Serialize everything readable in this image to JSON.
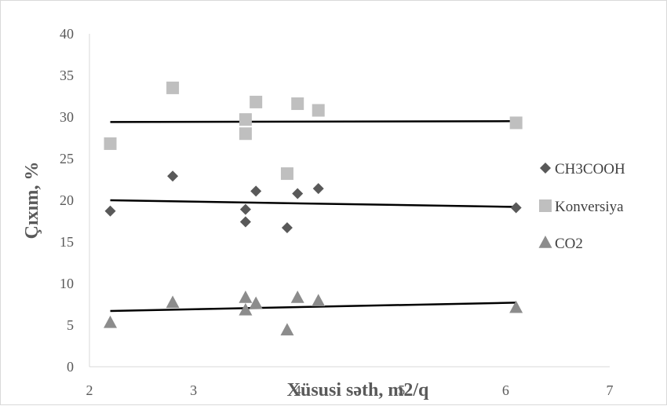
{
  "chart_data": {
    "type": "scatter",
    "title": "",
    "xlabel": "Xüsusi səth, m2/q",
    "ylabel": "Çıxım, %",
    "xlim": [
      2,
      7
    ],
    "ylim": [
      0,
      40
    ],
    "x_ticks": [
      "2",
      "3",
      "4",
      "5",
      "6",
      "7"
    ],
    "y_ticks": [
      "0",
      "5",
      "10",
      "15",
      "20",
      "25",
      "30",
      "35",
      "40"
    ],
    "grid": false,
    "legend_position": "right",
    "series": [
      {
        "name": "CH3COOH",
        "marker": "diamond",
        "color": "#595959",
        "points": [
          [
            2.2,
            18.7
          ],
          [
            2.8,
            22.9
          ],
          [
            3.5,
            18.9
          ],
          [
            3.5,
            17.4
          ],
          [
            3.6,
            21.1
          ],
          [
            3.9,
            16.7
          ],
          [
            4.0,
            20.8
          ],
          [
            4.2,
            21.4
          ],
          [
            6.1,
            19.1
          ]
        ],
        "trendline": [
          [
            2.2,
            20.0
          ],
          [
            6.1,
            19.2
          ]
        ]
      },
      {
        "name": "Konversiya",
        "marker": "square",
        "color": "#bfbfbf",
        "points": [
          [
            2.2,
            26.8
          ],
          [
            2.8,
            33.5
          ],
          [
            3.5,
            29.7
          ],
          [
            3.5,
            28.0
          ],
          [
            3.6,
            31.8
          ],
          [
            3.9,
            23.2
          ],
          [
            4.0,
            31.6
          ],
          [
            4.2,
            30.8
          ],
          [
            6.1,
            29.3
          ]
        ],
        "trendline": [
          [
            2.2,
            29.4
          ],
          [
            6.1,
            29.5
          ]
        ]
      },
      {
        "name": "CO2",
        "marker": "triangle",
        "color": "#8c8c8c",
        "points": [
          [
            2.2,
            5.3
          ],
          [
            2.8,
            7.7
          ],
          [
            3.5,
            8.3
          ],
          [
            3.5,
            6.8
          ],
          [
            3.6,
            7.6
          ],
          [
            3.9,
            4.4
          ],
          [
            4.0,
            8.3
          ],
          [
            4.2,
            7.9
          ],
          [
            6.1,
            7.1
          ]
        ],
        "trendline": [
          [
            2.2,
            6.7
          ],
          [
            6.1,
            7.7
          ]
        ]
      }
    ]
  }
}
